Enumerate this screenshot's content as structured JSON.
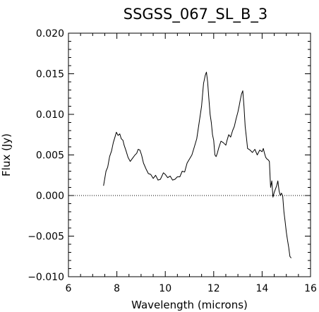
{
  "chart_data": {
    "type": "line",
    "title": "SSGSS_067_SL_B_3",
    "xlabel": "Wavelength (microns)",
    "ylabel": "Flux (Jy)",
    "xlim": [
      6,
      16
    ],
    "ylim": [
      -0.01,
      0.02
    ],
    "xticks": [
      6,
      8,
      10,
      12,
      14,
      16
    ],
    "xtick_labels": [
      "6",
      "8",
      "10",
      "12",
      "14",
      "16"
    ],
    "yticks": [
      -0.01,
      -0.005,
      0.0,
      0.005,
      0.01,
      0.015,
      0.02
    ],
    "ytick_labels": [
      "−0.010",
      "−0.005",
      "0.000",
      "0.005",
      "0.010",
      "0.015",
      "0.020"
    ],
    "zero_line": true,
    "series": [
      {
        "x": [
          7.45,
          7.55,
          7.62,
          7.7,
          7.78,
          7.85,
          7.92,
          7.98,
          8.05,
          8.12,
          8.18,
          8.25,
          8.3,
          8.38,
          8.46,
          8.55,
          8.65,
          8.75,
          8.82,
          8.88,
          8.95,
          9.02,
          9.1,
          9.2,
          9.3,
          9.4,
          9.5,
          9.6,
          9.7,
          9.8,
          9.92,
          10.0,
          10.1,
          10.2,
          10.3,
          10.4,
          10.5,
          10.6,
          10.7,
          10.8,
          10.9,
          11.0,
          11.1,
          11.2,
          11.3,
          11.4,
          11.5,
          11.58,
          11.65,
          11.7,
          11.75,
          11.8,
          11.85,
          11.9,
          11.95,
          12.0,
          12.05,
          12.1,
          12.15,
          12.2,
          12.3,
          12.4,
          12.5,
          12.55,
          12.62,
          12.7,
          12.78,
          12.85,
          12.92,
          13.0,
          13.05,
          13.1,
          13.15,
          13.2,
          13.25,
          13.3,
          13.35,
          13.4,
          13.5,
          13.6,
          13.7,
          13.8,
          13.9,
          14.0,
          14.05,
          14.1,
          14.15,
          14.2,
          14.25,
          14.3,
          14.35,
          14.4,
          14.45,
          14.5,
          14.55,
          14.6,
          14.65,
          14.7,
          14.75,
          14.8,
          14.85,
          14.9,
          14.95,
          15.0,
          15.05,
          15.1,
          15.15,
          15.2
        ],
        "y": [
          0.0012,
          0.003,
          0.0035,
          0.0048,
          0.0055,
          0.0065,
          0.0072,
          0.0078,
          0.0074,
          0.0076,
          0.007,
          0.0068,
          0.0062,
          0.0055,
          0.0047,
          0.0042,
          0.0046,
          0.005,
          0.0052,
          0.0057,
          0.0056,
          0.005,
          0.004,
          0.0033,
          0.0027,
          0.0026,
          0.0021,
          0.0025,
          0.0019,
          0.002,
          0.0028,
          0.0026,
          0.0022,
          0.0024,
          0.0019,
          0.002,
          0.0023,
          0.0023,
          0.003,
          0.0029,
          0.004,
          0.0045,
          0.005,
          0.006,
          0.007,
          0.009,
          0.011,
          0.0138,
          0.0148,
          0.0152,
          0.014,
          0.012,
          0.01,
          0.009,
          0.0075,
          0.0068,
          0.005,
          0.0048,
          0.0052,
          0.0058,
          0.0067,
          0.0065,
          0.0062,
          0.0068,
          0.0075,
          0.0072,
          0.008,
          0.0085,
          0.0094,
          0.0103,
          0.011,
          0.0118,
          0.0125,
          0.0129,
          0.011,
          0.0085,
          0.0072,
          0.0058,
          0.0056,
          0.0053,
          0.0057,
          0.005,
          0.0056,
          0.0054,
          0.0058,
          0.0052,
          0.0047,
          0.0045,
          0.0044,
          0.0042,
          0.001,
          0.0018,
          -0.0002,
          0.0004,
          0.0008,
          0.0012,
          0.0018,
          0.0006,
          0.0,
          0.0003,
          -0.0001,
          -0.002,
          -0.0032,
          -0.0045,
          -0.0055,
          -0.0064,
          -0.0075,
          -0.0077
        ]
      }
    ]
  }
}
